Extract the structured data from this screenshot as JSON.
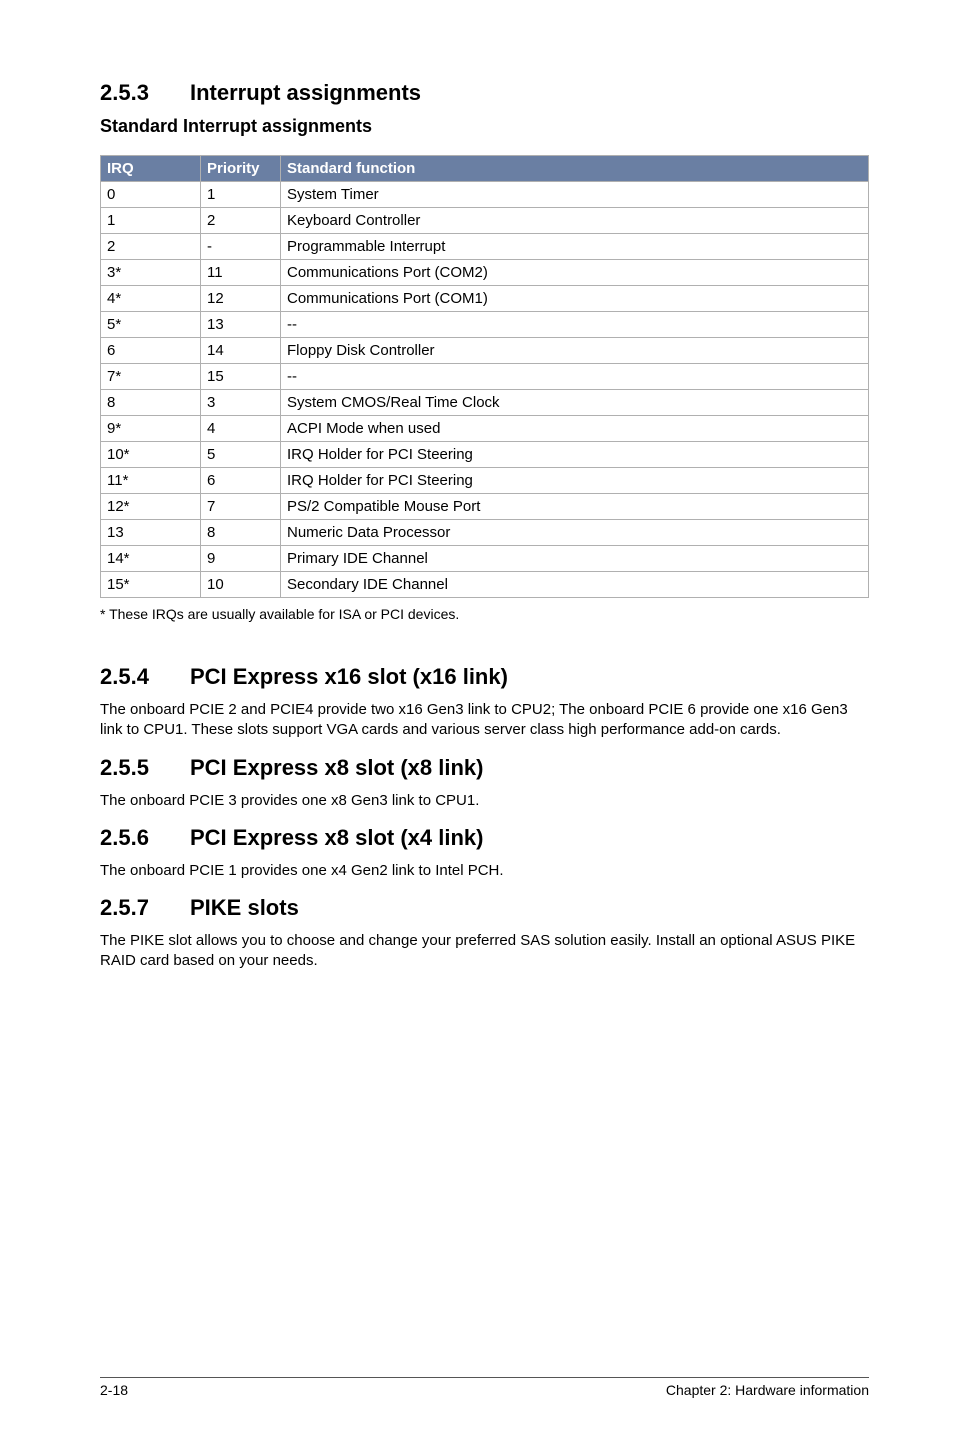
{
  "section253": {
    "number": "2.5.3",
    "title": "Interrupt assignments",
    "subheading": "Standard Interrupt assignments"
  },
  "table": {
    "headers": {
      "irq": "IRQ",
      "priority": "Priority",
      "func": "Standard function"
    },
    "rows": [
      {
        "irq": "0",
        "priority": "1",
        "func": "System Timer"
      },
      {
        "irq": "1",
        "priority": "2",
        "func": "Keyboard Controller"
      },
      {
        "irq": "2",
        "priority": "-",
        "func": "Programmable Interrupt"
      },
      {
        "irq": "3*",
        "priority": "11",
        "func": "Communications Port (COM2)"
      },
      {
        "irq": "4*",
        "priority": "12",
        "func": "Communications Port (COM1)"
      },
      {
        "irq": "5*",
        "priority": "13",
        "func": "--"
      },
      {
        "irq": "6",
        "priority": "14",
        "func": "Floppy Disk Controller"
      },
      {
        "irq": "7*",
        "priority": "15",
        "func": "--"
      },
      {
        "irq": "8",
        "priority": "3",
        "func": "System CMOS/Real Time Clock"
      },
      {
        "irq": "9*",
        "priority": "4",
        "func": "ACPI Mode when used"
      },
      {
        "irq": "10*",
        "priority": "5",
        "func": "IRQ Holder for PCI Steering"
      },
      {
        "irq": "11*",
        "priority": "6",
        "func": "IRQ Holder for PCI Steering"
      },
      {
        "irq": "12*",
        "priority": "7",
        "func": "PS/2 Compatible Mouse Port"
      },
      {
        "irq": "13",
        "priority": "8",
        "func": "Numeric Data Processor"
      },
      {
        "irq": "14*",
        "priority": "9",
        "func": "Primary IDE Channel"
      },
      {
        "irq": "15*",
        "priority": "10",
        "func": "Secondary IDE Channel"
      }
    ]
  },
  "footnote": "* These IRQs are usually available for ISA or PCI devices.",
  "section254": {
    "number": "2.5.4",
    "title": "PCI Express x16 slot (x16 link)",
    "body": "The onboard PCIE 2 and PCIE4 provide two x16 Gen3 link to CPU2; The onboard PCIE 6 provide one x16 Gen3 link to CPU1. These slots support VGA cards and various server class high performance add-on cards."
  },
  "section255": {
    "number": "2.5.5",
    "title": "PCI Express x8 slot (x8 link)",
    "body": "The onboard PCIE 3 provides one x8 Gen3 link to CPU1."
  },
  "section256": {
    "number": "2.5.6",
    "title": "PCI Express x8 slot (x4 link)",
    "body": "The onboard PCIE 1 provides one x4 Gen2 link to Intel PCH."
  },
  "section257": {
    "number": "2.5.7",
    "title": "PIKE slots",
    "body": "The PIKE slot allows you to choose and change your preferred SAS solution easily. Install an optional ASUS PIKE RAID card based on your needs."
  },
  "footer": {
    "left": "2-18",
    "right": "Chapter 2: Hardware information"
  }
}
